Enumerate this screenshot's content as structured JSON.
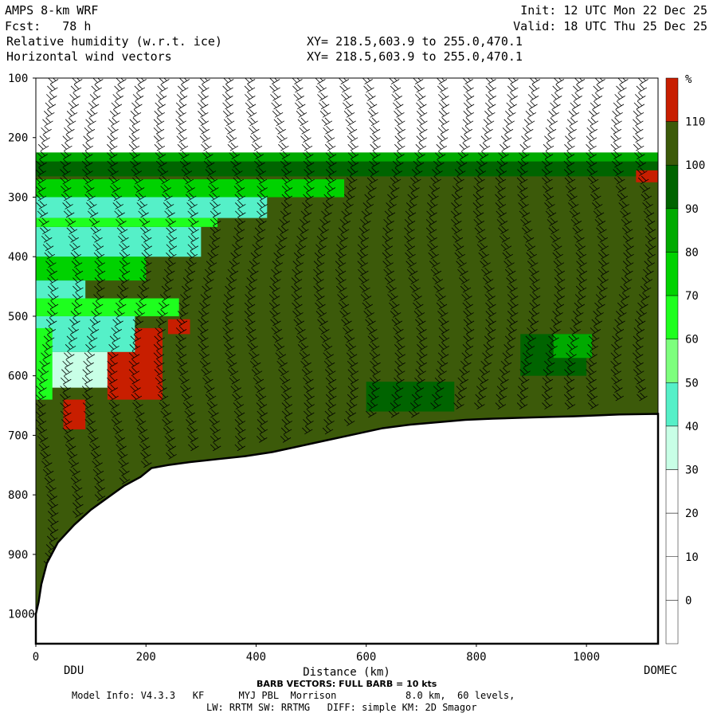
{
  "header": {
    "title": "AMPS 8-km WRF",
    "fcst": "Fcst:   78 h",
    "field1": "Relative humidity (w.r.t. ice)",
    "field2": "Horizontal wind vectors",
    "xy1": "XY= 218.5,603.9 to 255.0,470.1",
    "xy2": "XY= 218.5,603.9 to 255.0,470.1",
    "init": "Init: 12 UTC Mon 22 Dec 25",
    "valid": "Valid: 18 UTC Thu 25 Dec 25"
  },
  "chart_data": {
    "type": "heatmap",
    "xlabel": "Distance (km)",
    "x_ticks": [
      0,
      200,
      400,
      600,
      800,
      1000
    ],
    "xlim": [
      0,
      1130
    ],
    "y_ticks": [
      100,
      200,
      300,
      400,
      500,
      600,
      700,
      800,
      900,
      1000
    ],
    "ylim": [
      1050,
      100
    ],
    "endpoints": {
      "left": "DDU",
      "right": "DOMEC"
    },
    "colorbar": {
      "unit": "%",
      "levels": [
        0,
        10,
        20,
        30,
        40,
        50,
        60,
        70,
        80,
        90,
        100,
        110
      ],
      "colors": [
        "#ffffff",
        "#ffffff",
        "#ffffff",
        "#ffffff",
        "#c8ffe6",
        "#55f0c8",
        "#7dff7d",
        "#1eff1e",
        "#00d200",
        "#00aa00",
        "#006400",
        "#3c5a0a",
        "#c81e00"
      ]
    },
    "terrain_profile": {
      "x": [
        0,
        5,
        10,
        20,
        40,
        70,
        100,
        130,
        160,
        190,
        210,
        240,
        280,
        330,
        380,
        430,
        480,
        530,
        580,
        630,
        680,
        730,
        780,
        830,
        900,
        980,
        1060,
        1130
      ],
      "p": [
        1000,
        980,
        950,
        915,
        880,
        850,
        825,
        805,
        785,
        770,
        755,
        750,
        745,
        740,
        735,
        728,
        718,
        708,
        698,
        688,
        682,
        678,
        674,
        672,
        670,
        668,
        665,
        664
      ]
    },
    "rh_regions": [
      {
        "level": "80-90",
        "x0": 0,
        "x1": 1130,
        "p0": 225,
        "p1": 260
      },
      {
        "level": "90-100",
        "x0": 0,
        "x1": 1130,
        "p0": 240,
        "p1": 265
      },
      {
        "level": "70-80",
        "x0": 0,
        "x1": 560,
        "p0": 270,
        "p1": 300
      },
      {
        "level": "40-50",
        "x0": 0,
        "x1": 300,
        "p0": 350,
        "p1": 400
      },
      {
        "level": "30-40",
        "x0": 20,
        "x1": 140,
        "p0": 560,
        "p1": 620
      },
      {
        "level": "110+",
        "x0": 130,
        "x1": 230,
        "p0": 520,
        "p1": 640
      }
    ],
    "barbs": {
      "full_barb_kts": 10,
      "columns_x": [
        15,
        60,
        100,
        145,
        185,
        230,
        270,
        310,
        355,
        395,
        440,
        480,
        520,
        560,
        600,
        645,
        685,
        725,
        770,
        810,
        850,
        890,
        935,
        975,
        1015,
        1060,
        1100
      ]
    }
  },
  "footer": {
    "barb_note": "BARB VECTORS: FULL BARB = 10 kts",
    "model_info": "Model Info: V4.3.3   KF      MYJ PBL  Morrison            8.0 km,  60 levels,",
    "physics": "LW: RRTM SW: RRTMG   DIFF: simple KM: 2D Smagor"
  }
}
